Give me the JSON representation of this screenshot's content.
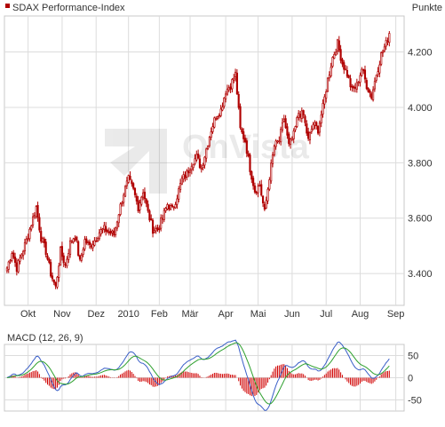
{
  "chart_data": [
    {
      "type": "candlestick",
      "title": "SDAX Performance-Index",
      "ylabel": "Punkte",
      "ylim": [
        3285,
        4330
      ],
      "yticks": [
        3400,
        3600,
        3800,
        4000,
        4200
      ],
      "ytick_labels": [
        "3.400",
        "3.600",
        "3.800",
        "4.000",
        "4.200"
      ],
      "xticks": [
        {
          "pos": 13,
          "label": "Okt"
        },
        {
          "pos": 34,
          "label": "Nov"
        },
        {
          "pos": 55,
          "label": "Dez"
        },
        {
          "pos": 75,
          "label": "2010"
        },
        {
          "pos": 94,
          "label": "Feb"
        },
        {
          "pos": 113,
          "label": "Mär"
        },
        {
          "pos": 135,
          "label": "Apr"
        },
        {
          "pos": 155,
          "label": "Mai"
        },
        {
          "pos": 176,
          "label": "Jun"
        },
        {
          "pos": 197,
          "label": "Jul"
        },
        {
          "pos": 218,
          "label": "Aug"
        },
        {
          "pos": 240,
          "label": "Sep"
        }
      ],
      "n_days": 244,
      "anchors": [
        [
          0,
          3420
        ],
        [
          3,
          3480
        ],
        [
          6,
          3420
        ],
        [
          9,
          3470
        ],
        [
          12,
          3520
        ],
        [
          15,
          3580
        ],
        [
          18,
          3640
        ],
        [
          21,
          3530
        ],
        [
          24,
          3480
        ],
        [
          27,
          3400
        ],
        [
          30,
          3350
        ],
        [
          33,
          3480
        ],
        [
          36,
          3430
        ],
        [
          39,
          3510
        ],
        [
          42,
          3540
        ],
        [
          45,
          3440
        ],
        [
          48,
          3520
        ],
        [
          51,
          3500
        ],
        [
          54,
          3520
        ],
        [
          57,
          3550
        ],
        [
          60,
          3560
        ],
        [
          63,
          3550
        ],
        [
          66,
          3540
        ],
        [
          69,
          3620
        ],
        [
          72,
          3690
        ],
        [
          75,
          3740
        ],
        [
          78,
          3700
        ],
        [
          81,
          3640
        ],
        [
          84,
          3700
        ],
        [
          87,
          3620
        ],
        [
          90,
          3560
        ],
        [
          93,
          3560
        ],
        [
          96,
          3600
        ],
        [
          99,
          3650
        ],
        [
          102,
          3630
        ],
        [
          105,
          3680
        ],
        [
          108,
          3740
        ],
        [
          111,
          3760
        ],
        [
          114,
          3800
        ],
        [
          117,
          3820
        ],
        [
          120,
          3780
        ],
        [
          123,
          3850
        ],
        [
          126,
          3920
        ],
        [
          129,
          3970
        ],
        [
          132,
          3990
        ],
        [
          135,
          4060
        ],
        [
          138,
          4080
        ],
        [
          141,
          4120
        ],
        [
          144,
          3920
        ],
        [
          147,
          3880
        ],
        [
          150,
          3780
        ],
        [
          153,
          3700
        ],
        [
          156,
          3720
        ],
        [
          159,
          3620
        ],
        [
          162,
          3750
        ],
        [
          165,
          3860
        ],
        [
          168,
          3880
        ],
        [
          171,
          3960
        ],
        [
          174,
          3860
        ],
        [
          177,
          3900
        ],
        [
          180,
          3980
        ],
        [
          183,
          3970
        ],
        [
          186,
          3880
        ],
        [
          189,
          3940
        ],
        [
          192,
          3920
        ],
        [
          195,
          4000
        ],
        [
          198,
          4100
        ],
        [
          201,
          4180
        ],
        [
          204,
          4230
        ],
        [
          207,
          4160
        ],
        [
          210,
          4120
        ],
        [
          213,
          4060
        ],
        [
          216,
          4080
        ],
        [
          219,
          4140
        ],
        [
          222,
          4080
        ],
        [
          225,
          4040
        ],
        [
          228,
          4120
        ],
        [
          231,
          4190
        ],
        [
          234,
          4230
        ],
        [
          236,
          4270
        ]
      ]
    },
    {
      "type": "macd",
      "title": "MACD (12, 26, 9)",
      "ylim": [
        -75,
        75
      ],
      "yticks": [
        50,
        0,
        -50
      ],
      "ytick_labels": [
        "50",
        "0",
        "-50"
      ]
    }
  ],
  "colors": {
    "candle": "#b00000",
    "macd_line": "#3a5fc8",
    "signal_line": "#2ea02e",
    "histogram": "#d00000",
    "grid": "#dcdcdc",
    "frame": "#c8c8c8",
    "title_marker": "#b00000"
  },
  "watermark": "OnVista"
}
